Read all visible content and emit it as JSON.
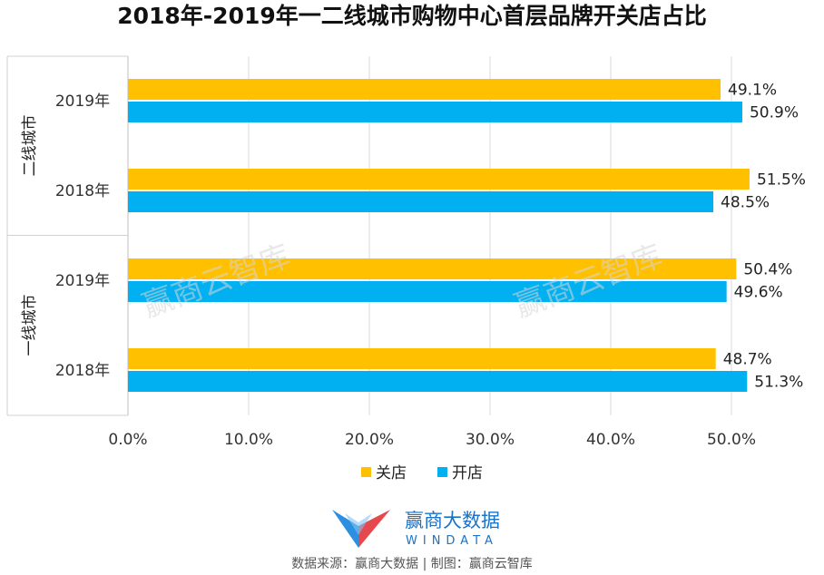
{
  "chart_data": {
    "type": "bar",
    "orientation": "horizontal",
    "title": "2018年-2019年一二线城市购物中心首层品牌开关店占比",
    "groups": [
      {
        "name": "二线城市",
        "categories": [
          "2019年",
          "2018年"
        ]
      },
      {
        "name": "一线城市",
        "categories": [
          "2019年",
          "2018年"
        ]
      }
    ],
    "categories": [
      "二线城市 2019年",
      "二线城市 2018年",
      "一线城市 2019年",
      "一线城市 2018年"
    ],
    "category_labels": [
      "2019年",
      "2018年",
      "2019年",
      "2018年"
    ],
    "series": [
      {
        "name": "关店",
        "color": "#FFC000",
        "values": [
          49.1,
          51.5,
          50.4,
          48.7
        ],
        "labels": [
          "49.1%",
          "51.5%",
          "50.4%",
          "48.7%"
        ]
      },
      {
        "name": "开店",
        "color": "#00B0F0",
        "values": [
          50.9,
          48.5,
          49.6,
          51.3
        ],
        "labels": [
          "50.9%",
          "48.5%",
          "49.6%",
          "51.3%"
        ]
      }
    ],
    "xlim": [
      0,
      50
    ],
    "xticks": [
      "0.0%",
      "10.0%",
      "20.0%",
      "30.0%",
      "40.0%",
      "50.0%"
    ],
    "grid": true,
    "legend_position": "bottom"
  },
  "watermark": "赢商云智库",
  "logo": {
    "cn": "赢商大数据",
    "en": "WINDATA"
  },
  "source": "数据来源：赢商大数据 | 制图：赢商云智库"
}
